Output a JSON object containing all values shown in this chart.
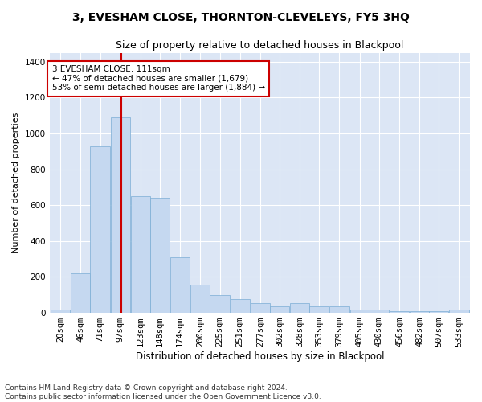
{
  "title": "3, EVESHAM CLOSE, THORNTON-CLEVELEYS, FY5 3HQ",
  "subtitle": "Size of property relative to detached houses in Blackpool",
  "xlabel": "Distribution of detached houses by size in Blackpool",
  "ylabel": "Number of detached properties",
  "bar_color": "#c5d8f0",
  "bar_edge_color": "#7aadd4",
  "background_color": "#dce6f5",
  "grid_color": "#ffffff",
  "annotation_text": "3 EVESHAM CLOSE: 111sqm\n← 47% of detached houses are smaller (1,679)\n53% of semi-detached houses are larger (1,884) →",
  "annotation_box_color": "#ffffff",
  "annotation_box_edge_color": "#cc0000",
  "vline_x": 111,
  "vline_color": "#cc0000",
  "footer_text": "Contains HM Land Registry data © Crown copyright and database right 2024.\nContains public sector information licensed under the Open Government Licence v3.0.",
  "bins_start": [
    20,
    46,
    71,
    97,
    123,
    148,
    174,
    200,
    225,
    251,
    277,
    302,
    328,
    353,
    379,
    405,
    430,
    456,
    482,
    507,
    533
  ],
  "bin_width": 26,
  "bar_heights": [
    20,
    220,
    930,
    1090,
    650,
    640,
    310,
    155,
    100,
    75,
    55,
    35,
    55,
    35,
    35,
    20,
    20,
    10,
    10,
    10,
    20
  ],
  "ylim": [
    0,
    1450
  ],
  "yticks": [
    0,
    200,
    400,
    600,
    800,
    1000,
    1200,
    1400
  ],
  "title_fontsize": 10,
  "subtitle_fontsize": 9,
  "xlabel_fontsize": 8.5,
  "ylabel_fontsize": 8,
  "tick_fontsize": 7.5,
  "footer_fontsize": 6.5
}
